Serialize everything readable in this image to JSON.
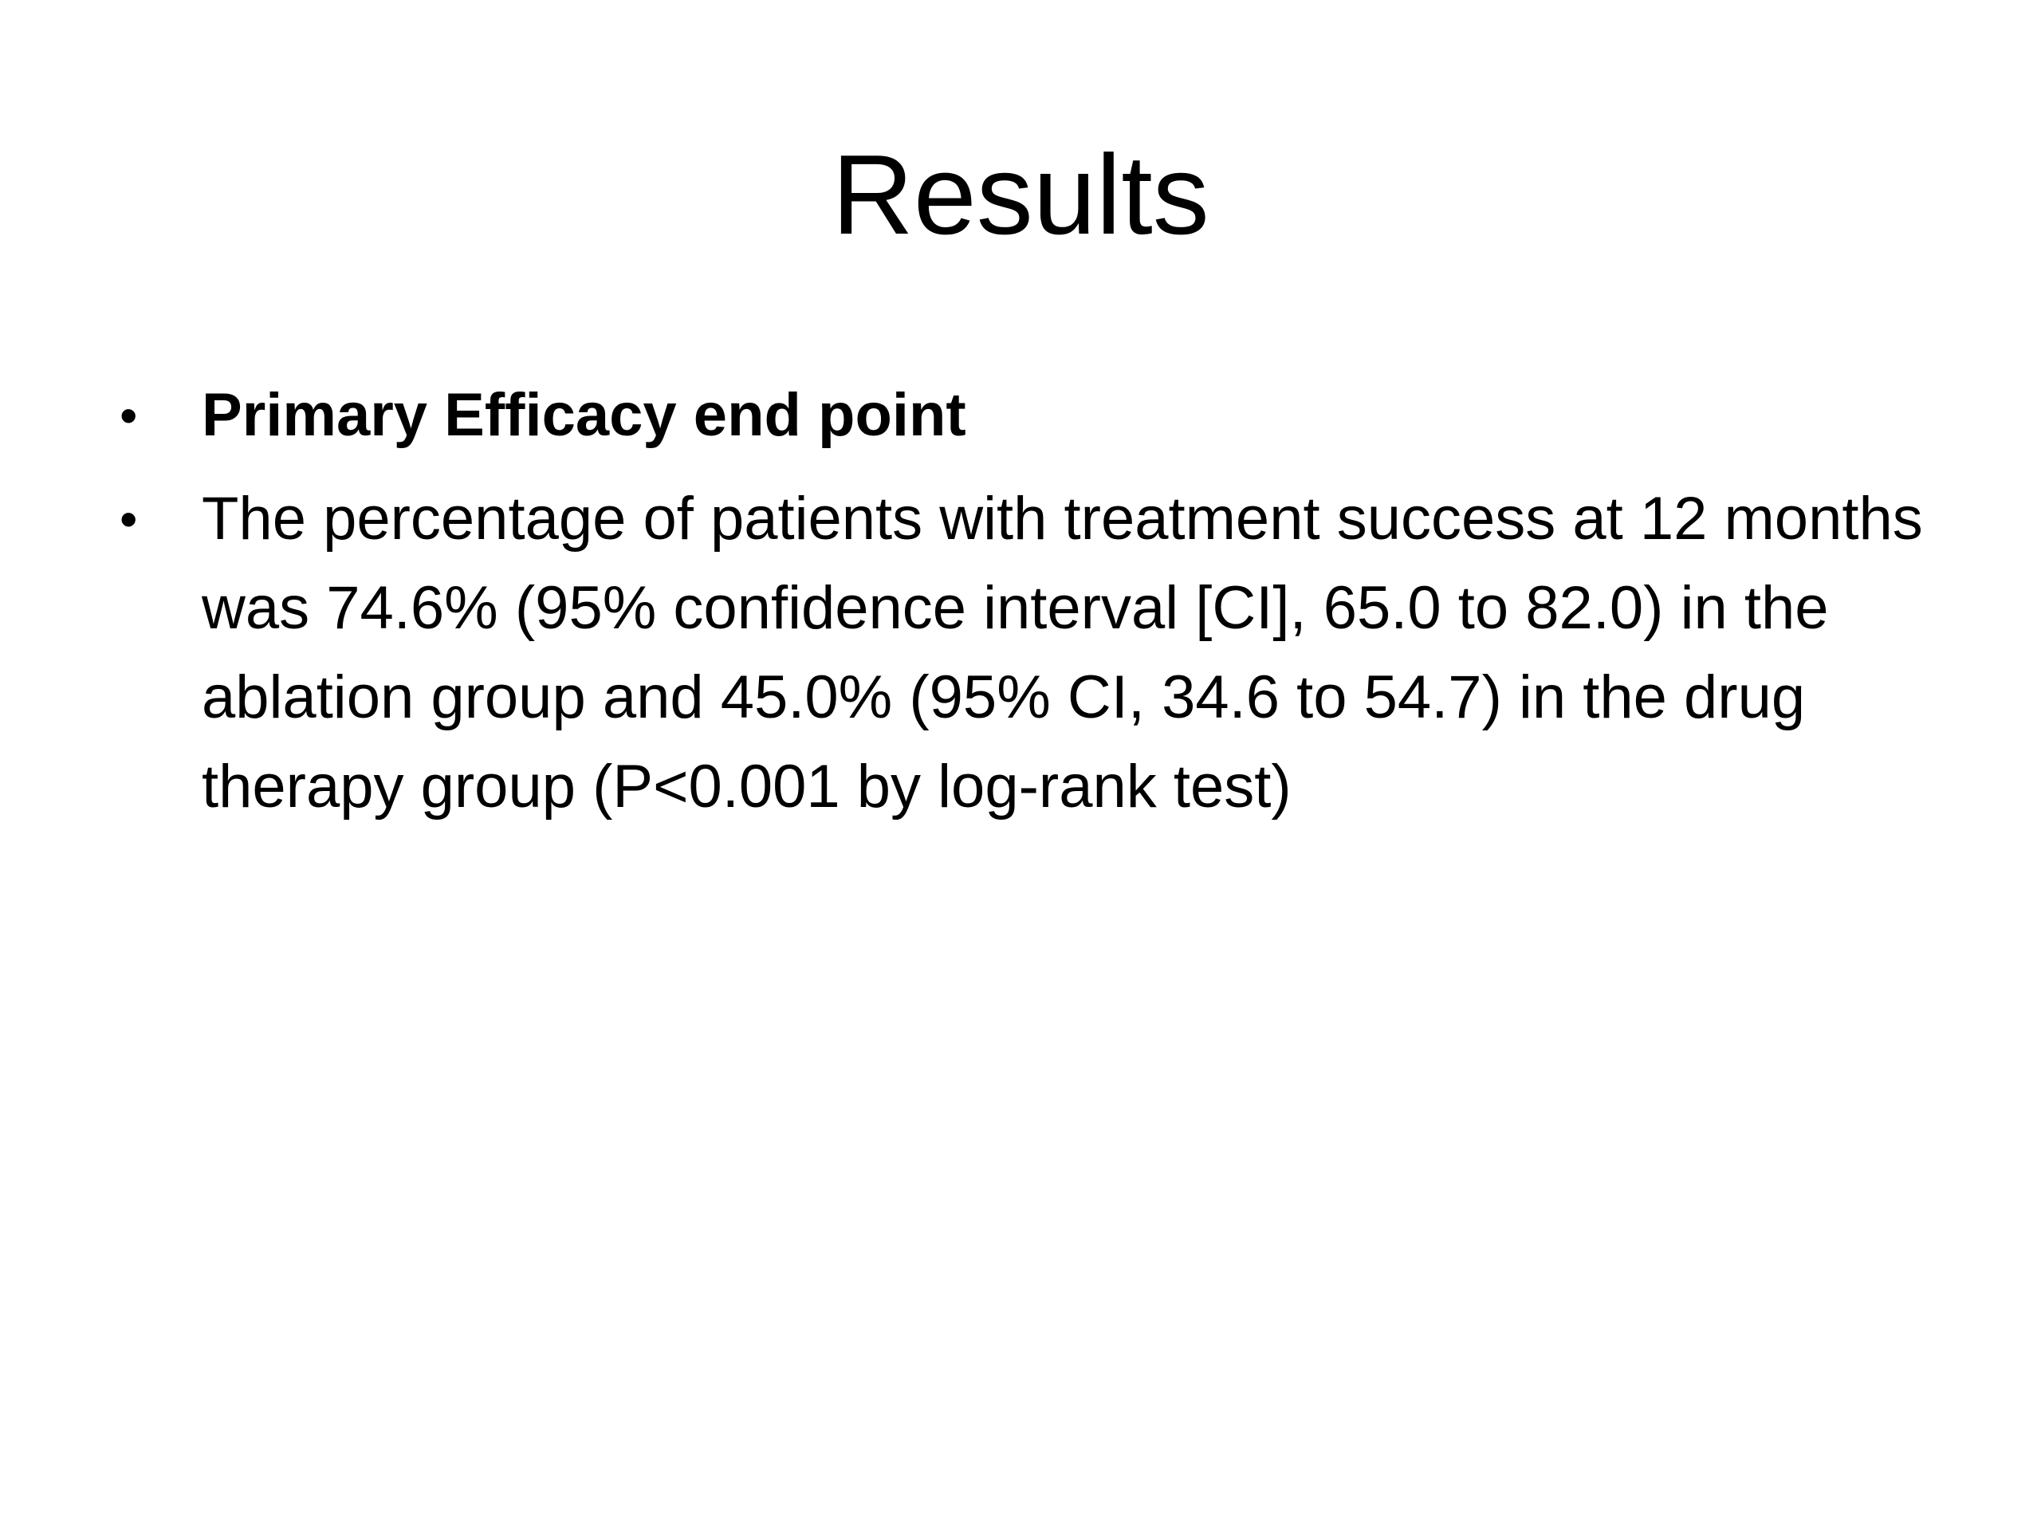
{
  "slide": {
    "title": "Results",
    "bullets": [
      {
        "marker": "•",
        "text": "Primary Efficacy end point"
      },
      {
        "marker": "•",
        "text": "The percentage of patients with treatment success at 12 months was 74.6% (95% confidence interval [CI], 65.0 to 82.0) in the ablation group and 45.0% (95% CI, 34.6 to 54.7) in the drug therapy group (P<0.001 by log-rank test)"
      }
    ]
  }
}
